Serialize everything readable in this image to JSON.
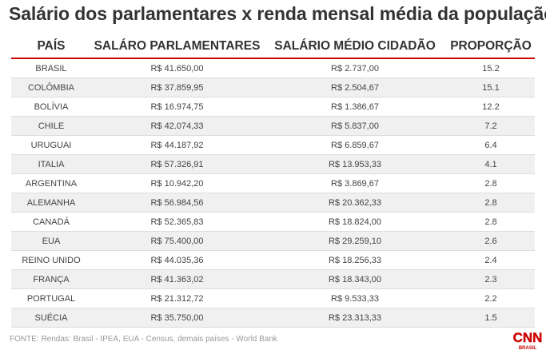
{
  "title": "Salário dos parlamentares x renda mensal média da população",
  "table": {
    "headers": [
      "PAÍS",
      "SALÁRO PARLAMENTARES",
      "SALÁRIO MÉDIO CIDADÃO",
      "PROPORÇÃO"
    ],
    "rows": [
      [
        "BRASIL",
        "R$ 41.650,00",
        "R$ 2.737,00",
        "15.2"
      ],
      [
        "COLÔMBIA",
        "R$ 37.859,95",
        "R$ 2.504,67",
        "15.1"
      ],
      [
        "BOLÍVIA",
        "R$ 16.974,75",
        "R$ 1.386,67",
        "12.2"
      ],
      [
        "CHILE",
        "R$ 42.074,33",
        "R$ 5.837,00",
        "7.2"
      ],
      [
        "URUGUAI",
        "R$ 44.187,92",
        "R$ 6.859,67",
        "6.4"
      ],
      [
        "ITALIA",
        "R$ 57.326,91",
        "R$ 13.953,33",
        "4.1"
      ],
      [
        "ARGENTINA",
        "R$ 10.942,20",
        "R$ 3.869,67",
        "2.8"
      ],
      [
        "ALEMANHA",
        "R$ 56.984,56",
        "R$ 20.362,33",
        "2.8"
      ],
      [
        "CANADÁ",
        "R$ 52.365,83",
        "R$ 18.824,00",
        "2.8"
      ],
      [
        "EUA",
        "R$ 75.400,00",
        "R$ 29.259,10",
        "2.6"
      ],
      [
        "REINO UNIDO",
        "R$ 44.035,36",
        "R$ 18.256,33",
        "2.4"
      ],
      [
        "FRANÇA",
        "R$ 41.363,02",
        "R$ 18.343,00",
        "2.3"
      ],
      [
        "PORTUGAL",
        "R$ 21.312,72",
        "R$ 9.533,33",
        "2.2"
      ],
      [
        "SUÉCIA",
        "R$ 35.750,00",
        "R$ 23.313,33",
        "1.5"
      ]
    ]
  },
  "source": "FONTE: Rendas: Brasil - IPEA, EUA - Census, demais países - World Bank",
  "logo": {
    "text": "CNN",
    "subtext": "BRASIL",
    "color": "#cc0000",
    "icon": "cnn-brasil-logo"
  },
  "colors": {
    "accent": "#cc0000",
    "row_alt": "#f0f0f0",
    "text": "#333333"
  }
}
